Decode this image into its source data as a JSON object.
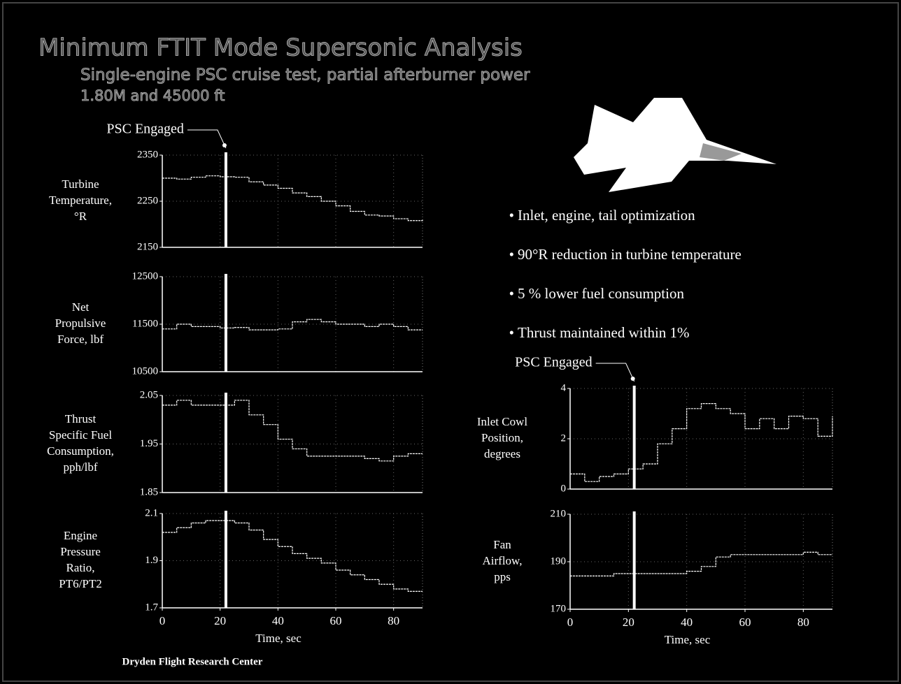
{
  "slide": {
    "title": "Minimum FTIT Mode Supersonic Analysis",
    "subtitle": [
      "Single-engine PSC cruise test, partial afterburner power",
      "1.80M and 45000 ft"
    ],
    "bullets": [
      "Inlet, engine, tail optimization",
      "90°R reduction in turbine temperature",
      "5 % lower fuel consumption",
      "Thrust maintained within 1%"
    ],
    "footer": "Dryden Flight Research Center"
  },
  "chart_data": [
    {
      "type": "line",
      "annotation": "PSC Engaged",
      "event_x": 22,
      "ylabel": [
        "Turbine",
        "Temperature,",
        "°R"
      ],
      "x": [
        0,
        5,
        10,
        15,
        20,
        25,
        30,
        35,
        40,
        45,
        50,
        55,
        60,
        65,
        70,
        75,
        80,
        85,
        90
      ],
      "values": [
        2300,
        2298,
        2302,
        2305,
        2303,
        2302,
        2292,
        2285,
        2278,
        2268,
        2260,
        2250,
        2240,
        2228,
        2220,
        2218,
        2212,
        2208,
        2210
      ],
      "xlim": [
        0,
        90
      ],
      "xticks": [
        0,
        20,
        40,
        60,
        80
      ],
      "ylim": [
        2150,
        2350
      ],
      "yticks": [
        2150,
        2250,
        2350
      ],
      "color": "#ffffff"
    },
    {
      "type": "line",
      "event_x": 22,
      "ylabel": [
        "Net",
        "Propulsive",
        "Force, lbf"
      ],
      "x": [
        0,
        5,
        10,
        15,
        20,
        25,
        30,
        35,
        40,
        45,
        50,
        55,
        60,
        65,
        70,
        75,
        80,
        85,
        90
      ],
      "values": [
        11400,
        11500,
        11450,
        11450,
        11420,
        11430,
        11380,
        11380,
        11400,
        11550,
        11600,
        11550,
        11500,
        11500,
        11450,
        11500,
        11450,
        11380,
        11380
      ],
      "xlim": [
        0,
        90
      ],
      "xticks": [
        0,
        20,
        40,
        60,
        80
      ],
      "ylim": [
        10500,
        12500
      ],
      "yticks": [
        10500,
        11500,
        12500
      ],
      "color": "#ffffff"
    },
    {
      "type": "line",
      "event_x": 22,
      "ylabel": [
        "Thrust",
        "Specific Fuel",
        "Consumption,",
        "pph/lbf"
      ],
      "x": [
        0,
        5,
        10,
        15,
        20,
        25,
        30,
        35,
        40,
        45,
        50,
        55,
        60,
        65,
        70,
        75,
        80,
        85,
        90
      ],
      "values": [
        2.03,
        2.04,
        2.03,
        2.03,
        2.03,
        2.04,
        2.01,
        1.99,
        1.96,
        1.94,
        1.925,
        1.925,
        1.925,
        1.925,
        1.92,
        1.915,
        1.925,
        1.93,
        1.93
      ],
      "xlim": [
        0,
        90
      ],
      "xticks": [
        0,
        20,
        40,
        60,
        80
      ],
      "ylim": [
        1.85,
        2.05
      ],
      "yticks": [
        1.85,
        1.95,
        2.05
      ],
      "color": "#ffffff"
    },
    {
      "type": "line",
      "event_x": 22,
      "xlabel": "Time, sec",
      "ylabel": [
        "Engine",
        "Pressure",
        "Ratio,",
        "PT6/PT2"
      ],
      "x": [
        0,
        5,
        10,
        15,
        20,
        25,
        30,
        35,
        40,
        45,
        50,
        55,
        60,
        65,
        70,
        75,
        80,
        85,
        90
      ],
      "values": [
        2.02,
        2.04,
        2.06,
        2.07,
        2.07,
        2.06,
        2.03,
        1.99,
        1.96,
        1.93,
        1.91,
        1.89,
        1.86,
        1.84,
        1.82,
        1.8,
        1.78,
        1.77,
        1.77
      ],
      "xlim": [
        0,
        90
      ],
      "xticks": [
        0,
        20,
        40,
        60,
        80
      ],
      "ylim": [
        1.7,
        2.1
      ],
      "yticks": [
        1.7,
        1.9,
        2.1
      ],
      "color": "#ffffff"
    },
    {
      "type": "line",
      "annotation": "PSC Engaged",
      "event_x": 22,
      "ylabel": [
        "Inlet Cowl",
        "Position,",
        "degrees"
      ],
      "x": [
        0,
        5,
        10,
        15,
        20,
        25,
        30,
        35,
        40,
        45,
        50,
        55,
        60,
        65,
        70,
        75,
        80,
        85,
        90
      ],
      "values": [
        0.6,
        0.3,
        0.5,
        0.6,
        0.8,
        1.0,
        1.8,
        2.4,
        3.2,
        3.4,
        3.2,
        3.0,
        2.4,
        2.8,
        2.4,
        2.9,
        2.8,
        2.1,
        2.9
      ],
      "xlim": [
        0,
        90
      ],
      "xticks": [
        0,
        20,
        40,
        60,
        80
      ],
      "ylim": [
        0,
        4
      ],
      "yticks": [
        0,
        2,
        4
      ],
      "color": "#ffffff"
    },
    {
      "type": "line",
      "event_x": 22,
      "xlabel": "Time, sec",
      "ylabel": [
        "Fan",
        "Airflow,",
        "pps"
      ],
      "x": [
        0,
        5,
        10,
        15,
        20,
        25,
        30,
        35,
        40,
        45,
        50,
        55,
        60,
        65,
        70,
        75,
        80,
        85,
        90
      ],
      "values": [
        184,
        184,
        184,
        185,
        185,
        185,
        185,
        185,
        186,
        188,
        192,
        193,
        193,
        193,
        193,
        193,
        194,
        193,
        193
      ],
      "xlim": [
        0,
        90
      ],
      "xticks": [
        0,
        20,
        40,
        60,
        80
      ],
      "ylim": [
        170,
        210
      ],
      "yticks": [
        170,
        190,
        210
      ],
      "color": "#ffffff"
    }
  ]
}
